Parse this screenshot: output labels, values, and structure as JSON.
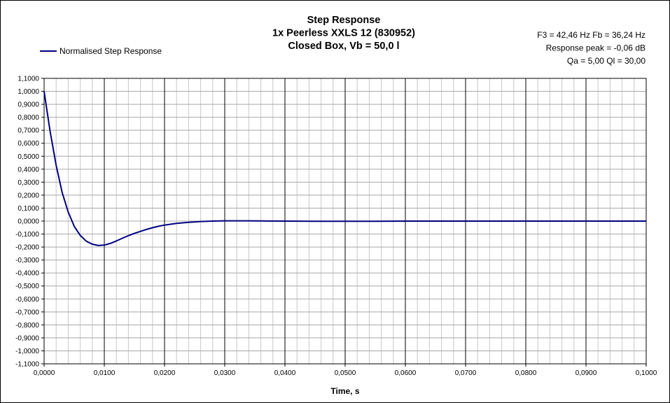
{
  "chart_data": {
    "type": "line",
    "title": [
      "Step Response",
      "1x Peerless XXLS 12 (830952)",
      "Closed Box, Vb = 50,0 l"
    ],
    "info": [
      "F3 = 42,46 Hz  Fb = 36,24 Hz",
      "Response  peak = -0,06 dB",
      "Qa = 5,00  Ql = 30,00"
    ],
    "xlabel": "Time, s",
    "ylabel": "",
    "xlim": [
      0,
      0.1
    ],
    "ylim": [
      -1.1,
      1.1
    ],
    "x_tick_labels": [
      "0,0000",
      "0,0100",
      "0,0200",
      "0,0300",
      "0,0400",
      "0,0500",
      "0,0600",
      "0,0700",
      "0,0800",
      "0,0900",
      "0,1000"
    ],
    "y_tick_labels": [
      "1,1000",
      "1,0000",
      "0,9000",
      "0,8000",
      "0,7000",
      "0,6000",
      "0,5000",
      "0,4000",
      "0,3000",
      "0,2000",
      "0,1000",
      "0,0000",
      "-0,1000",
      "-0,2000",
      "-0,3000",
      "-0,4000",
      "-0,5000",
      "-0,6000",
      "-0,7000",
      "-0,8000",
      "-0,9000",
      "-1,0000",
      "-1,1000"
    ],
    "grid": true,
    "legend_position": "top-left",
    "series": [
      {
        "name": "Normalised Step Response",
        "color": "#000080",
        "x": [
          0,
          0.001,
          0.002,
          0.003,
          0.004,
          0.005,
          0.006,
          0.007,
          0.008,
          0.009,
          0.01,
          0.011,
          0.012,
          0.013,
          0.014,
          0.015,
          0.016,
          0.017,
          0.018,
          0.019,
          0.02,
          0.022,
          0.024,
          0.026,
          0.028,
          0.03,
          0.033,
          0.036,
          0.04,
          0.045,
          0.05,
          0.055,
          0.06,
          0.07,
          0.08,
          0.09,
          0.1
        ],
        "y": [
          1.0,
          0.69,
          0.43,
          0.22,
          0.07,
          -0.04,
          -0.11,
          -0.155,
          -0.178,
          -0.188,
          -0.185,
          -0.172,
          -0.153,
          -0.132,
          -0.112,
          -0.095,
          -0.079,
          -0.064,
          -0.051,
          -0.04,
          -0.031,
          -0.018,
          -0.009,
          -0.003,
          0.0,
          0.002,
          0.002,
          0.001,
          0.0,
          -0.001,
          -0.001,
          -0.001,
          0.0,
          0.0,
          0.0,
          0.0,
          0.0
        ]
      }
    ]
  }
}
